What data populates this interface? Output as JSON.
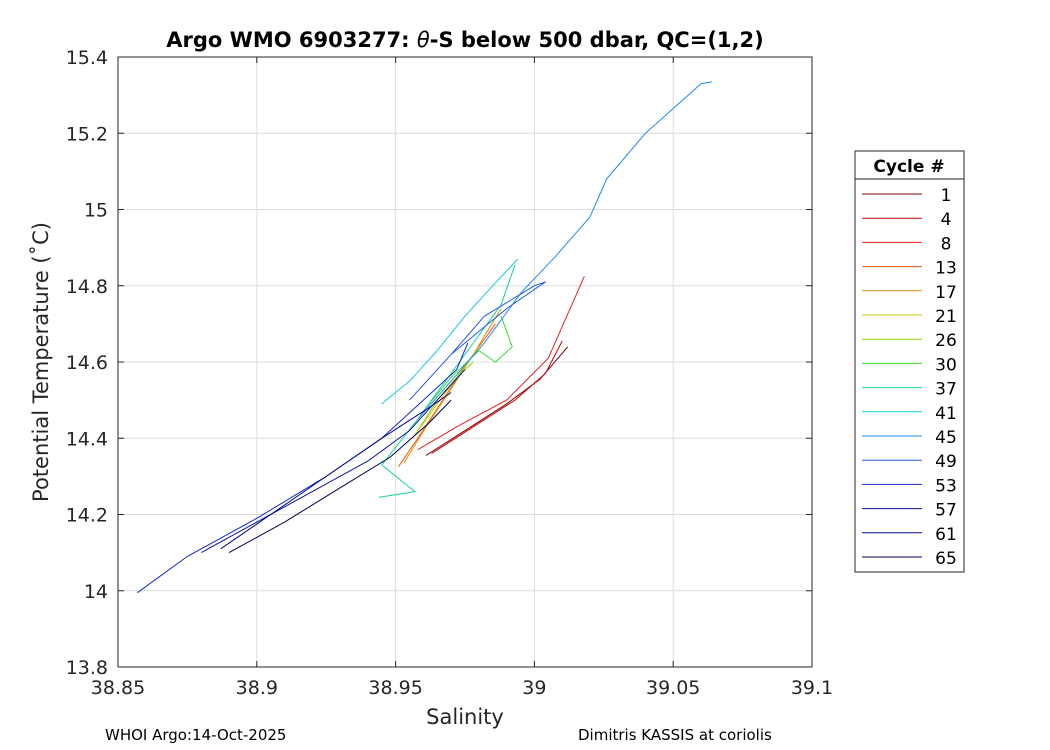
{
  "chart_data": {
    "type": "line",
    "title_prefix": "Argo WMO 6903277: ",
    "title_theta": "θ",
    "title_suffix": "-S below 500 dbar,  QC=(1,2)",
    "xlabel": "Salinity",
    "ylabel": "Potential Temperature (˚C)",
    "xlim": [
      38.85,
      39.1
    ],
    "ylim": [
      13.8,
      15.4
    ],
    "xticks": [
      38.85,
      38.9,
      38.95,
      39.0,
      39.05,
      39.1
    ],
    "xtick_labels": [
      "38.85",
      "38.9",
      "38.95",
      "39",
      "39.05",
      "39.1"
    ],
    "yticks": [
      13.8,
      14.0,
      14.2,
      14.4,
      14.6,
      14.8,
      15.0,
      15.2,
      15.4
    ],
    "ytick_labels": [
      "13.8",
      "14",
      "14.2",
      "14.4",
      "14.6",
      "14.8",
      "15",
      "15.2",
      "15.4"
    ],
    "grid": true,
    "legend_title": "Cycle #",
    "legend_position": "right",
    "series": [
      {
        "name": "1",
        "color": "#7f0000",
        "points": [
          [
            38.961,
            14.355
          ],
          [
            38.975,
            14.42
          ],
          [
            38.99,
            14.49
          ],
          [
            39.002,
            14.555
          ],
          [
            39.012,
            14.64
          ]
        ]
      },
      {
        "name": "4",
        "color": "#c80000",
        "points": [
          [
            38.963,
            14.36
          ],
          [
            38.978,
            14.43
          ],
          [
            38.993,
            14.5
          ],
          [
            39.004,
            14.57
          ],
          [
            39.01,
            14.655
          ]
        ]
      },
      {
        "name": "8",
        "color": "#e61e1e",
        "points": [
          [
            38.958,
            14.37
          ],
          [
            38.972,
            14.43
          ],
          [
            38.99,
            14.5
          ],
          [
            39.005,
            14.61
          ],
          [
            39.015,
            14.775
          ],
          [
            39.018,
            14.825
          ]
        ]
      },
      {
        "name": "13",
        "color": "#f05a0a",
        "points": [
          [
            38.951,
            14.325
          ],
          [
            38.958,
            14.4
          ],
          [
            38.967,
            14.5
          ],
          [
            38.976,
            14.6
          ],
          [
            38.986,
            14.7
          ]
        ]
      },
      {
        "name": "17",
        "color": "#e68c00",
        "points": [
          [
            38.953,
            14.335
          ],
          [
            38.961,
            14.43
          ],
          [
            38.97,
            14.53
          ],
          [
            38.978,
            14.62
          ],
          [
            38.988,
            14.74
          ]
        ]
      },
      {
        "name": "21",
        "color": "#c8c800",
        "points": [
          [
            38.956,
            14.4
          ],
          [
            38.963,
            14.47
          ],
          [
            38.971,
            14.55
          ],
          [
            38.98,
            14.64
          ]
        ]
      },
      {
        "name": "26",
        "color": "#8cd200",
        "points": [
          [
            38.958,
            14.42
          ],
          [
            38.965,
            14.5
          ],
          [
            38.972,
            14.56
          ],
          [
            38.978,
            14.6
          ]
        ]
      },
      {
        "name": "30",
        "color": "#32dc32",
        "points": [
          [
            38.961,
            14.48
          ],
          [
            38.97,
            14.56
          ],
          [
            38.98,
            14.63
          ],
          [
            38.986,
            14.6
          ],
          [
            38.992,
            14.64
          ],
          [
            38.988,
            14.72
          ]
        ]
      },
      {
        "name": "37",
        "color": "#14d2a0",
        "points": [
          [
            38.944,
            14.245
          ],
          [
            38.957,
            14.26
          ],
          [
            38.945,
            14.33
          ],
          [
            38.958,
            14.45
          ],
          [
            38.973,
            14.6
          ],
          [
            38.988,
            14.75
          ],
          [
            38.993,
            14.855
          ]
        ]
      },
      {
        "name": "41",
        "color": "#14c8e6",
        "points": [
          [
            38.945,
            14.49
          ],
          [
            38.955,
            14.55
          ],
          [
            38.965,
            14.63
          ],
          [
            38.975,
            14.72
          ],
          [
            38.985,
            14.8
          ],
          [
            38.994,
            14.87
          ]
        ]
      },
      {
        "name": "45",
        "color": "#1e8cf0",
        "points": [
          [
            38.958,
            14.45
          ],
          [
            38.97,
            14.55
          ],
          [
            38.982,
            14.65
          ],
          [
            38.995,
            14.78
          ],
          [
            39.008,
            14.88
          ],
          [
            39.02,
            14.98
          ],
          [
            39.026,
            15.08
          ],
          [
            39.04,
            15.2
          ],
          [
            39.06,
            15.33
          ],
          [
            39.064,
            15.335
          ]
        ]
      },
      {
        "name": "49",
        "color": "#1e5ae6",
        "points": [
          [
            38.955,
            14.5
          ],
          [
            38.97,
            14.62
          ],
          [
            38.982,
            14.72
          ],
          [
            39.0,
            14.8
          ],
          [
            39.004,
            14.81
          ],
          [
            38.99,
            14.74
          ],
          [
            38.97,
            14.62
          ]
        ]
      },
      {
        "name": "53",
        "color": "#1428c8",
        "points": [
          [
            38.857,
            13.995
          ],
          [
            38.875,
            14.09
          ],
          [
            38.9,
            14.19
          ],
          [
            38.925,
            14.3
          ],
          [
            38.945,
            14.4
          ],
          [
            38.96,
            14.5
          ],
          [
            38.972,
            14.58
          ],
          [
            38.976,
            14.65
          ]
        ]
      },
      {
        "name": "57",
        "color": "#0a14a0",
        "points": [
          [
            38.88,
            14.1
          ],
          [
            38.9,
            14.18
          ],
          [
            38.92,
            14.26
          ],
          [
            38.94,
            14.34
          ],
          [
            38.955,
            14.42
          ],
          [
            38.965,
            14.5
          ],
          [
            38.975,
            14.58
          ]
        ]
      },
      {
        "name": "61",
        "color": "#000a82",
        "points": [
          [
            38.887,
            14.11
          ],
          [
            38.905,
            14.2
          ],
          [
            38.925,
            14.3
          ],
          [
            38.945,
            14.4
          ],
          [
            38.962,
            14.48
          ],
          [
            38.97,
            14.52
          ]
        ]
      },
      {
        "name": "65",
        "color": "#000050",
        "points": [
          [
            38.89,
            14.1
          ],
          [
            38.91,
            14.18
          ],
          [
            38.93,
            14.27
          ],
          [
            38.948,
            14.35
          ],
          [
            38.962,
            14.44
          ],
          [
            38.97,
            14.5
          ]
        ]
      }
    ]
  },
  "footer": {
    "left": "WHOI Argo:14-Oct-2025",
    "right": "Dimitris KASSIS at coriolis"
  }
}
